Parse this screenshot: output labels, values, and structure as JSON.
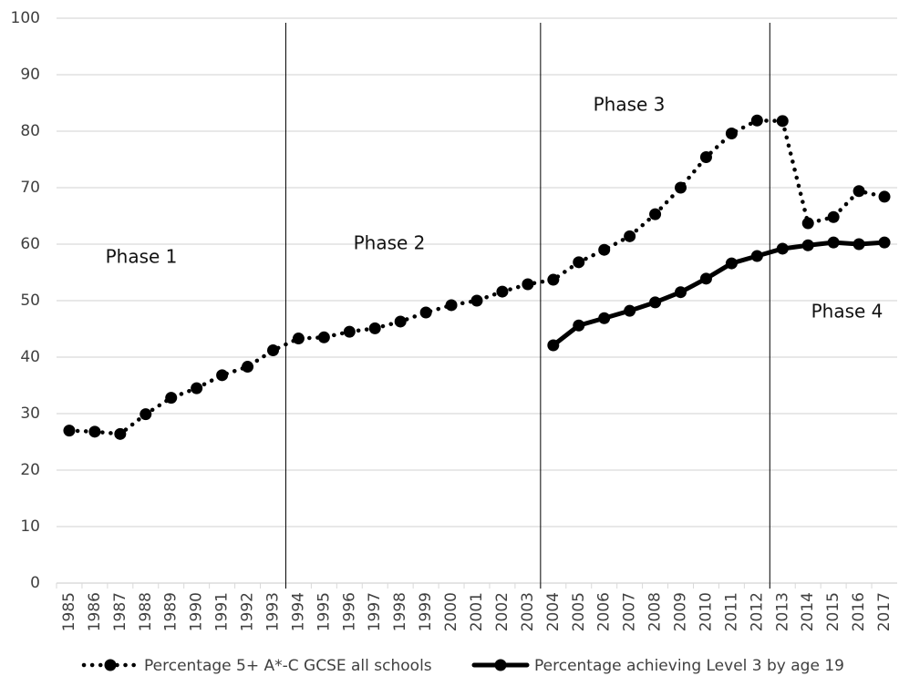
{
  "chart_data": {
    "type": "line",
    "categories": [
      "1985",
      "1986",
      "1987",
      "1988",
      "1989",
      "1990",
      "1991",
      "1992",
      "1993",
      "1994",
      "1995",
      "1996",
      "1997",
      "1998",
      "1999",
      "2000",
      "2001",
      "2002",
      "2003",
      "2004",
      "2005",
      "2006",
      "2007",
      "2008",
      "2009",
      "2010",
      "2011",
      "2012",
      "2013",
      "2014",
      "2015",
      "2016",
      "2017"
    ],
    "series": [
      {
        "name": "Percentage 5+ A*-C GCSE all schools",
        "color": "#000000",
        "dash": "dotted",
        "values": [
          27.0,
          26.8,
          26.4,
          29.9,
          32.8,
          34.5,
          36.8,
          38.3,
          41.2,
          43.3,
          43.5,
          44.5,
          45.1,
          46.3,
          47.9,
          49.2,
          50.0,
          51.6,
          52.9,
          53.7,
          56.8,
          59.0,
          61.4,
          65.3,
          70.0,
          75.4,
          79.6,
          81.9,
          81.8,
          63.7,
          64.8,
          69.4,
          68.4
        ]
      },
      {
        "name": "Percentage achieving Level 3 by age 19",
        "color": "#000000",
        "dash": "solid",
        "values": [
          null,
          null,
          null,
          null,
          null,
          null,
          null,
          null,
          null,
          null,
          null,
          null,
          null,
          null,
          null,
          null,
          null,
          null,
          null,
          42.1,
          45.6,
          46.9,
          48.2,
          49.7,
          51.5,
          53.9,
          56.6,
          57.9,
          59.2,
          59.8,
          60.3,
          60.0,
          60.3
        ]
      }
    ],
    "phases": [
      {
        "label": "Phase 1",
        "start": "1985"
      },
      {
        "label": "Phase 2",
        "start": "1994"
      },
      {
        "label": "Phase 3",
        "start": "2004"
      },
      {
        "label": "Phase 4",
        "start": "2013"
      }
    ],
    "ylim": [
      0,
      100
    ],
    "yticks": [
      0,
      10,
      20,
      30,
      40,
      50,
      60,
      70,
      80,
      90,
      100
    ],
    "grid": true,
    "legend": "bottom"
  }
}
